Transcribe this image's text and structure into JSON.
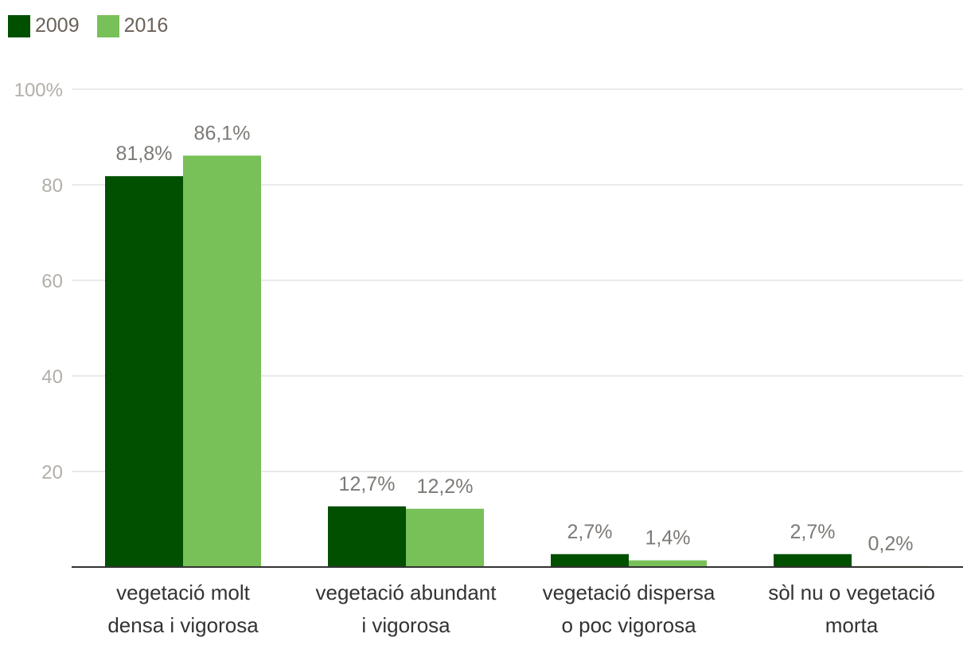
{
  "chart_data": {
    "type": "bar",
    "categories": [
      [
        "vegetació molt",
        "densa i vigorosa"
      ],
      [
        "vegetació abundant",
        "i vigorosa"
      ],
      [
        "vegetació dispersa",
        "o poc vigorosa"
      ],
      [
        "sòl nu o vegetació",
        "morta"
      ]
    ],
    "series": [
      {
        "name": "2009",
        "color": "#005000",
        "values": [
          81.8,
          12.7,
          2.7,
          2.7
        ],
        "labels": [
          "81,8%",
          "12,7%",
          "2,7%",
          "2,7%"
        ]
      },
      {
        "name": "2016",
        "color": "#78c058",
        "values": [
          86.1,
          12.2,
          1.4,
          0.2
        ],
        "labels": [
          "86,1%",
          "12,2%",
          "1,4%",
          "0,2%"
        ]
      }
    ],
    "yticks": [
      {
        "value": 20,
        "label": "20"
      },
      {
        "value": 40,
        "label": "40"
      },
      {
        "value": 60,
        "label": "60"
      },
      {
        "value": 80,
        "label": "80"
      },
      {
        "value": 100,
        "label": "100%"
      }
    ],
    "ylim": [
      0,
      100
    ],
    "legend_position": "top-left",
    "title": "",
    "xlabel": "",
    "ylabel": ""
  }
}
